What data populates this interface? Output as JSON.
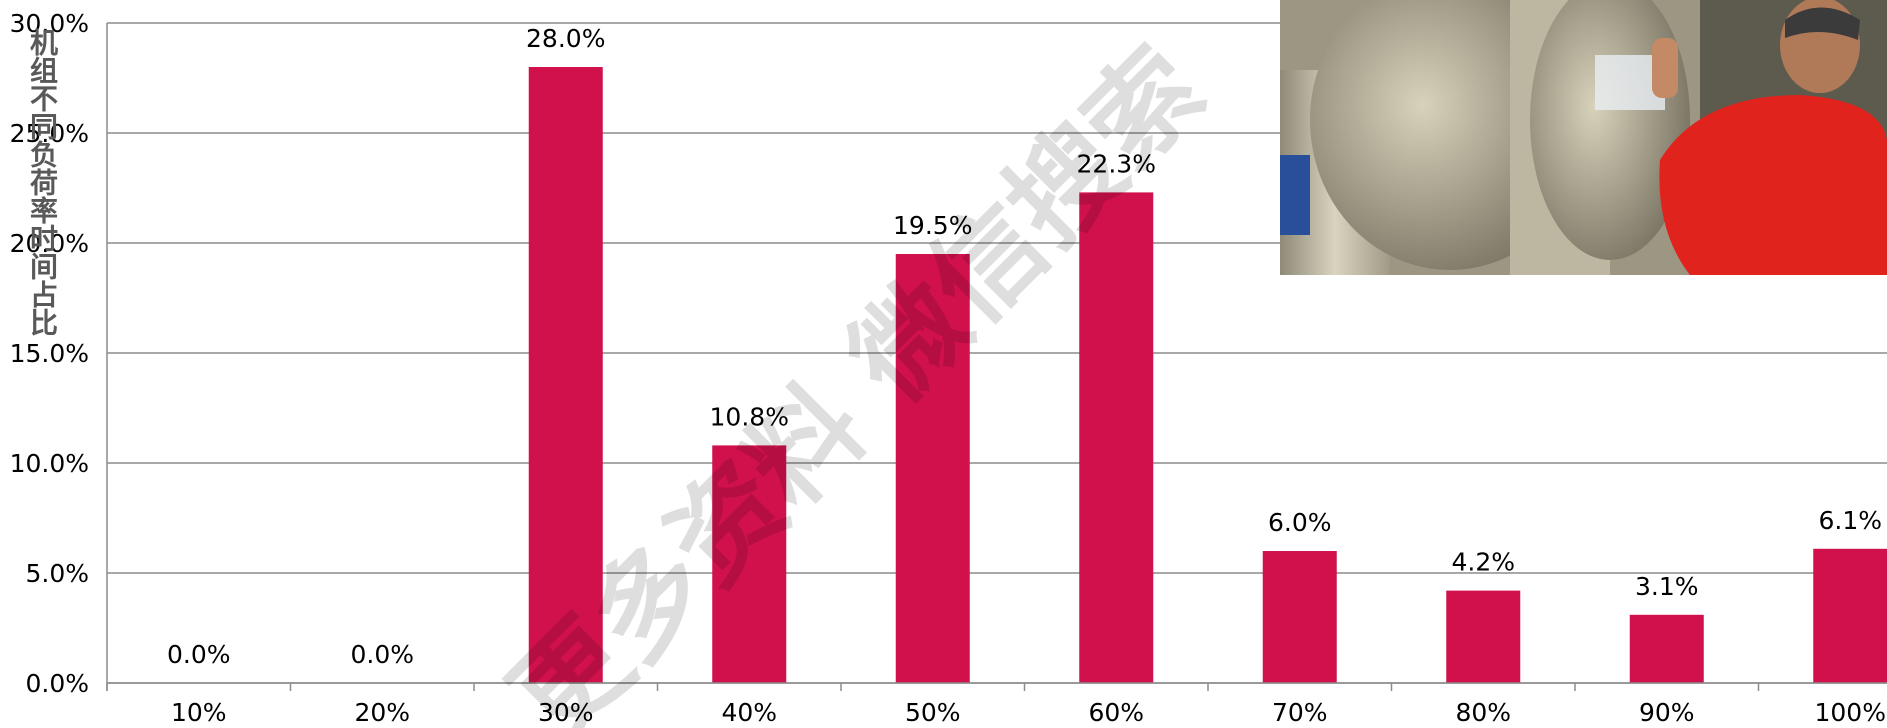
{
  "chart_data": {
    "type": "bar",
    "categories": [
      "10%",
      "20%",
      "30%",
      "40%",
      "50%",
      "60%",
      "70%",
      "80%",
      "90%",
      "100%"
    ],
    "values": [
      0.0,
      0.0,
      28.0,
      10.8,
      19.5,
      22.3,
      6.0,
      4.2,
      3.1,
      6.1
    ],
    "data_labels": [
      "0.0%",
      "0.0%",
      "28.0%",
      "10.8%",
      "19.5%",
      "22.3%",
      "6.0%",
      "4.2%",
      "3.1%",
      "6.1%"
    ],
    "ylabel": "机组不同负荷率时间占比",
    "ylim": [
      0,
      30
    ],
    "yticks": [
      "0.0%",
      "5.0%",
      "10.0%",
      "15.0%",
      "20.0%",
      "25.0%",
      "30.0%"
    ],
    "grid": true,
    "bar_color": "#D0114C",
    "watermark": "更多资料 微信搜索"
  }
}
